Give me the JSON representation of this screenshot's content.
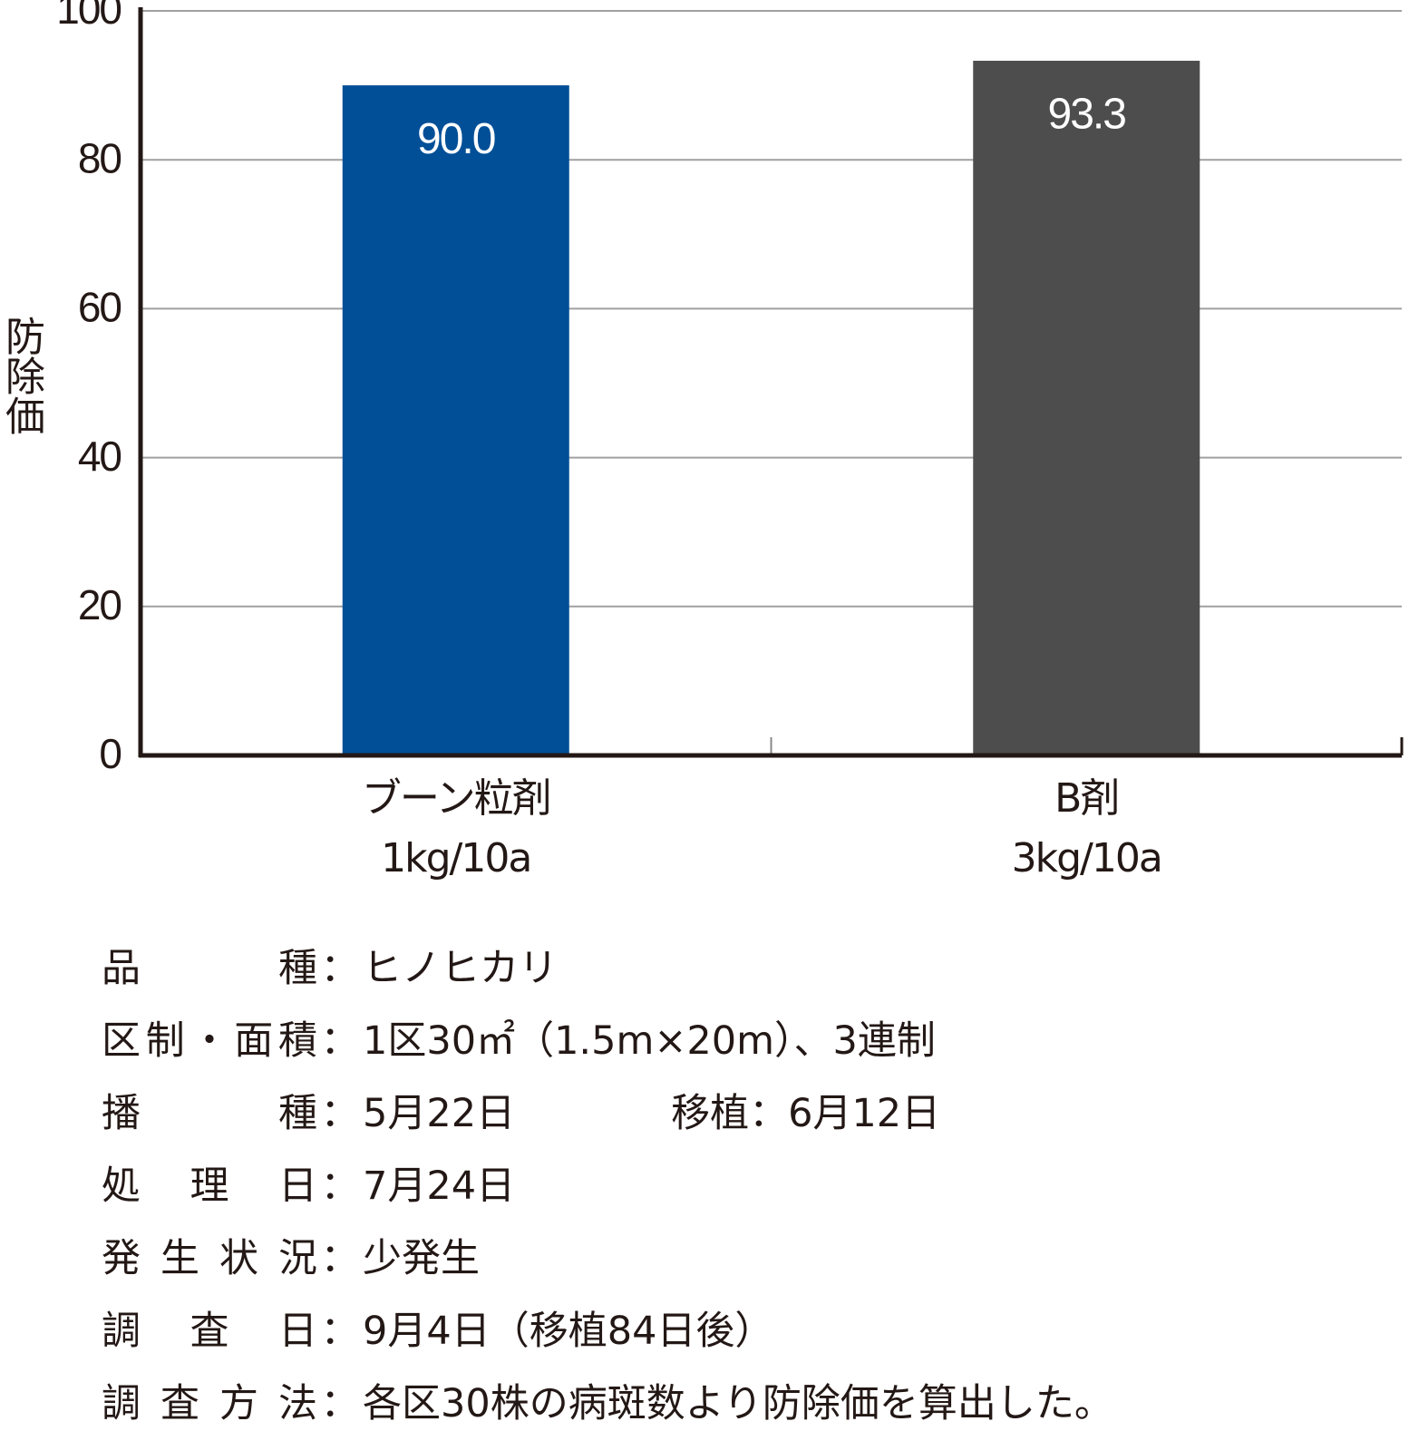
{
  "chart_data": {
    "type": "bar",
    "y_label": "防除価",
    "categories": [
      "ブーン粒剤\n1kg/10a",
      "B剤\n3kg/10a"
    ],
    "values": [
      90.0,
      93.3
    ],
    "value_labels": [
      "90.0",
      "93.3"
    ],
    "colors": [
      "#004f97",
      "#4d4d4d"
    ],
    "ylim": [
      0,
      100
    ],
    "yticks": [
      0,
      20,
      40,
      60,
      80,
      100
    ],
    "grid": true
  },
  "notes": {
    "separator": "：",
    "rows": [
      {
        "label": "品種",
        "value": "ヒノヒカリ"
      },
      {
        "label": "区制・面積",
        "value": "1区30㎡（1.5m×20m）、3連制"
      },
      {
        "label": "播種",
        "value": "5月22日　　　　移植：6月12日"
      },
      {
        "label": "処理日",
        "value": "7月24日"
      },
      {
        "label": "発生状況",
        "value": "少発生"
      },
      {
        "label": "調査日",
        "value": "9月4日（移植84日後）"
      },
      {
        "label": "調査方法",
        "value": "各区30株の病斑数より防除価を算出した。"
      }
    ]
  }
}
